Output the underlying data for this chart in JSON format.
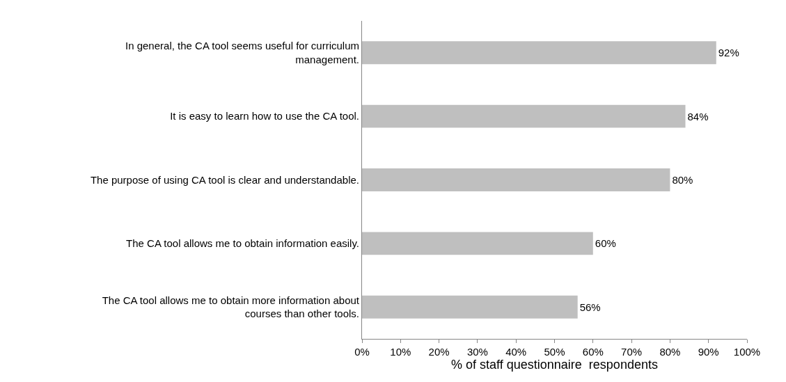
{
  "chart_data": {
    "type": "bar",
    "orientation": "horizontal",
    "categories": [
      "In general, the CA tool seems useful for curriculum management.",
      "It is easy to learn how to use the CA tool.",
      "The purpose of using CA tool is clear and understandable.",
      "The CA tool allows me to obtain information easily.",
      "The CA tool allows me to obtain more information about courses than other tools."
    ],
    "values": [
      92,
      84,
      80,
      60,
      56
    ],
    "value_labels": [
      "92%",
      "84%",
      "80%",
      "60%",
      "56%"
    ],
    "color": "#bfbfbf",
    "xlim": [
      0,
      100
    ],
    "xticks": [
      {
        "value": 0,
        "label": "0%"
      },
      {
        "value": 10,
        "label": "10%"
      },
      {
        "value": 20,
        "label": "20%"
      },
      {
        "value": 30,
        "label": "30%"
      },
      {
        "value": 40,
        "label": "40%"
      },
      {
        "value": 50,
        "label": "50%"
      },
      {
        "value": 60,
        "label": "60%"
      },
      {
        "value": 70,
        "label": "70%"
      },
      {
        "value": 80,
        "label": "80%"
      },
      {
        "value": 90,
        "label": "90%"
      },
      {
        "value": 100,
        "label": "100%"
      }
    ],
    "xlabel": "% of staff questionnaire  respondents"
  }
}
